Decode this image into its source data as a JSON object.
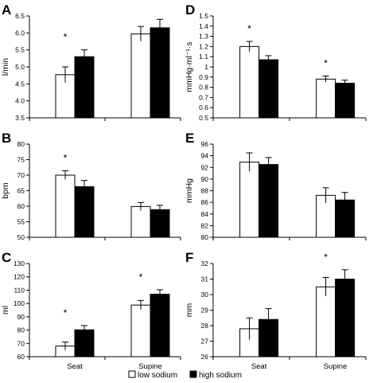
{
  "legend": {
    "entries": [
      "low sodium",
      "high sodium"
    ],
    "placement": "bottom-center"
  },
  "colors": {
    "low_sodium": "#ffffff",
    "high_sodium": "#000000",
    "axis": "#000000",
    "background": "#ffffff"
  },
  "chart_data": [
    {
      "panel": "A",
      "type": "bar",
      "ylabel": "l/min",
      "categories": [
        "Seat",
        "Supine"
      ],
      "show_category_labels": false,
      "ylim": [
        3.5,
        6.5
      ],
      "yticks": [
        3.5,
        4.0,
        4.5,
        5.0,
        5.5,
        6.0,
        6.5
      ],
      "ytick_labels": [
        "3.5",
        "4.0",
        "4.5",
        "5.0",
        "5.5",
        "6.0",
        "6.5"
      ],
      "series": [
        {
          "name": "low sodium",
          "values": [
            4.77,
            5.97
          ],
          "errors": [
            0.23,
            0.22
          ]
        },
        {
          "name": "high sodium",
          "values": [
            5.3,
            6.15
          ],
          "errors": [
            0.2,
            0.25
          ]
        }
      ],
      "significance": [
        "*",
        ""
      ],
      "grid": false
    },
    {
      "panel": "B",
      "type": "bar",
      "ylabel": "bpm",
      "categories": [
        "Seat",
        "Supine"
      ],
      "show_category_labels": false,
      "ylim": [
        50,
        80
      ],
      "yticks": [
        50,
        55,
        60,
        65,
        70,
        75,
        80
      ],
      "ytick_labels": [
        "50",
        "55",
        "60",
        "65",
        "70",
        "75",
        "80"
      ],
      "series": [
        {
          "name": "low sodium",
          "values": [
            70.0,
            59.9
          ],
          "errors": [
            1.4,
            1.3
          ]
        },
        {
          "name": "high sodium",
          "values": [
            66.3,
            58.9
          ],
          "errors": [
            2.0,
            1.4
          ]
        }
      ],
      "significance": [
        "*",
        ""
      ],
      "grid": false
    },
    {
      "panel": "C",
      "type": "bar",
      "ylabel": "ml",
      "categories": [
        "Seat",
        "Supine"
      ],
      "show_category_labels": true,
      "ylim": [
        60,
        130
      ],
      "yticks": [
        60,
        70,
        80,
        90,
        100,
        110,
        120,
        130
      ],
      "ytick_labels": [
        "60",
        "70",
        "80",
        "90",
        "100",
        "110",
        "120",
        "130"
      ],
      "series": [
        {
          "name": "low sodium",
          "values": [
            68.0,
            98.8
          ],
          "errors": [
            3.0,
            3.5
          ]
        },
        {
          "name": "high sodium",
          "values": [
            80.2,
            107.0
          ],
          "errors": [
            3.2,
            3.3
          ]
        }
      ],
      "significance": [
        "*",
        "*"
      ],
      "grid": false
    },
    {
      "panel": "D",
      "type": "bar",
      "ylabel": "mmHg·ml⁻¹·s",
      "categories": [
        "Seat",
        "Supine"
      ],
      "show_category_labels": false,
      "ylim": [
        0.5,
        1.5
      ],
      "yticks": [
        0.5,
        0.6,
        0.7,
        0.8,
        0.9,
        1.0,
        1.1,
        1.2,
        1.3,
        1.4,
        1.5
      ],
      "ytick_labels": [
        "0.5",
        "0.6",
        "0.7",
        "0.8",
        "0.9",
        "1",
        "1.1",
        "1.2",
        "1.3",
        "1.4",
        "1.5"
      ],
      "series": [
        {
          "name": "low sodium",
          "values": [
            1.2,
            0.88
          ],
          "errors": [
            0.05,
            0.03
          ]
        },
        {
          "name": "high sodium",
          "values": [
            1.07,
            0.84
          ],
          "errors": [
            0.04,
            0.03
          ]
        }
      ],
      "significance": [
        "*",
        "*"
      ],
      "grid": false
    },
    {
      "panel": "E",
      "type": "bar",
      "ylabel": "mmHg",
      "categories": [
        "Seat",
        "Supine"
      ],
      "show_category_labels": false,
      "ylim": [
        80,
        96
      ],
      "yticks": [
        80,
        82,
        84,
        86,
        88,
        90,
        92,
        94,
        96
      ],
      "ytick_labels": [
        "80",
        "82",
        "84",
        "86",
        "88",
        "90",
        "92",
        "94",
        "96"
      ],
      "series": [
        {
          "name": "low sodium",
          "values": [
            92.9,
            87.2
          ],
          "errors": [
            1.6,
            1.3
          ]
        },
        {
          "name": "high sodium",
          "values": [
            92.5,
            86.4
          ],
          "errors": [
            1.2,
            1.3
          ]
        }
      ],
      "significance": [
        "",
        ""
      ],
      "grid": false
    },
    {
      "panel": "F",
      "type": "bar",
      "ylabel": "mm",
      "categories": [
        "Seat",
        "Supine"
      ],
      "show_category_labels": true,
      "ylim": [
        26,
        32
      ],
      "yticks": [
        26,
        27,
        28,
        29,
        30,
        31,
        32
      ],
      "ytick_labels": [
        "26",
        "27",
        "28",
        "29",
        "30",
        "31",
        "32"
      ],
      "series": [
        {
          "name": "low sodium",
          "values": [
            27.8,
            30.5
          ],
          "errors": [
            0.7,
            0.6
          ]
        },
        {
          "name": "high sodium",
          "values": [
            28.4,
            31.0
          ],
          "errors": [
            0.7,
            0.6
          ]
        }
      ],
      "significance": [
        "",
        "*"
      ],
      "grid": false
    }
  ]
}
